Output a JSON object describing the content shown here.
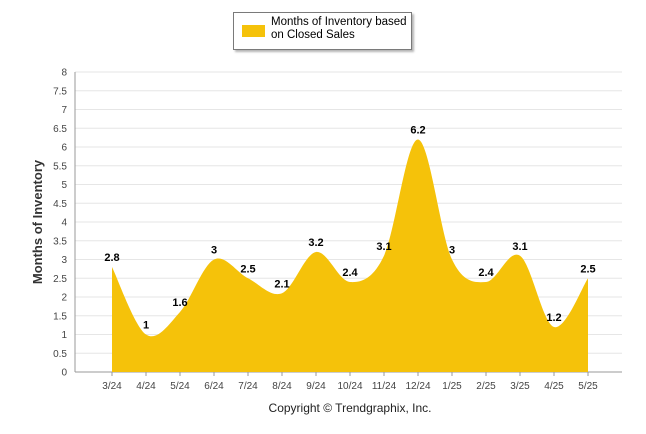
{
  "chart_data": {
    "type": "area",
    "title": "",
    "xlabel": "",
    "ylabel": "Months of Inventory",
    "categories": [
      "3/24",
      "4/24",
      "5/24",
      "6/24",
      "7/24",
      "8/24",
      "9/24",
      "10/24",
      "11/24",
      "12/24",
      "1/25",
      "2/25",
      "3/25",
      "4/25",
      "5/25"
    ],
    "series": [
      {
        "name": "Months of Inventory based on Closed Sales",
        "values": [
          2.8,
          1,
          1.6,
          3,
          2.5,
          2.1,
          3.2,
          2.4,
          3.1,
          6.2,
          3,
          2.4,
          3.1,
          1.2,
          2.5
        ],
        "color": "#f5c20a"
      }
    ],
    "ylim": [
      0,
      8
    ],
    "yticks": [
      "0",
      "0.5",
      "1",
      "1.5",
      "2",
      "2.5",
      "3",
      "3.5",
      "4",
      "4.5",
      "5",
      "5.5",
      "6",
      "6.5",
      "7",
      "7.5",
      "8"
    ],
    "grid": true,
    "legend_position": "top-center"
  },
  "legend": {
    "label": "Months of Inventory based on Closed Sales",
    "color": "#f5c20a"
  },
  "footer": {
    "copyright": "Copyright © Trendgraphix, Inc."
  }
}
